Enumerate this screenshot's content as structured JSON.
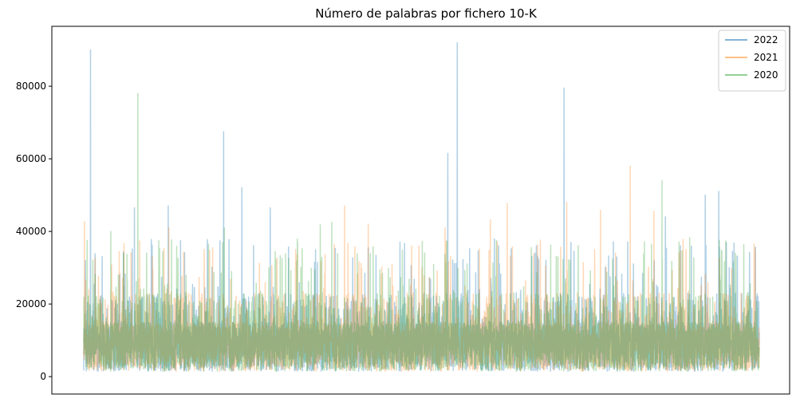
{
  "chart_data": {
    "type": "line",
    "title": "Número de palabras por fichero 10-K",
    "xlabel": "",
    "ylabel": "",
    "x_ticks_visible": false,
    "ylim": [
      -4800,
      96500
    ],
    "yticks": [
      0,
      20000,
      40000,
      60000,
      80000
    ],
    "ytick_labels": [
      "0",
      "20000",
      "40000",
      "60000",
      "80000"
    ],
    "grid": false,
    "legend_position": "top-right",
    "x_count": 4000,
    "series": [
      {
        "name": "2022",
        "color": "#1f77b4",
        "opacity": 0.35,
        "typical_range": [
          1000,
          20000
        ],
        "peaks": [
          [
            0.01,
            90000
          ],
          [
            0.207,
            67500
          ],
          [
            0.553,
            92000
          ],
          [
            0.539,
            61500
          ],
          [
            0.711,
            79500
          ],
          [
            0.234,
            52000
          ],
          [
            0.94,
            51000
          ],
          [
            0.92,
            50000
          ],
          [
            0.861,
            44000
          ],
          [
            0.276,
            46500
          ],
          [
            0.125,
            47000
          ],
          [
            0.075,
            46500
          ]
        ]
      },
      {
        "name": "2021",
        "color": "#ff7f0e",
        "opacity": 0.3,
        "typical_range": [
          1000,
          20000
        ],
        "peaks": [
          [
            0.001,
            42700
          ],
          [
            0.809,
            58000
          ],
          [
            0.715,
            48000
          ],
          [
            0.627,
            47700
          ],
          [
            0.386,
            47000
          ],
          [
            0.765,
            45800
          ],
          [
            0.844,
            45500
          ],
          [
            0.126,
            41000
          ],
          [
            0.602,
            43200
          ],
          [
            0.421,
            42000
          ],
          [
            0.535,
            41000
          ]
        ]
      },
      {
        "name": "2020",
        "color": "#2ca02c",
        "opacity": 0.3,
        "typical_range": [
          1000,
          20000
        ],
        "peaks": [
          [
            0.08,
            78000
          ],
          [
            0.856,
            54000
          ],
          [
            0.367,
            42500
          ],
          [
            0.35,
            41800
          ],
          [
            0.04,
            40000
          ],
          [
            0.316,
            37900
          ],
          [
            0.005,
            37500
          ],
          [
            0.208,
            41000
          ],
          [
            0.897,
            38300
          ],
          [
            0.944,
            34800
          ]
        ]
      }
    ]
  }
}
